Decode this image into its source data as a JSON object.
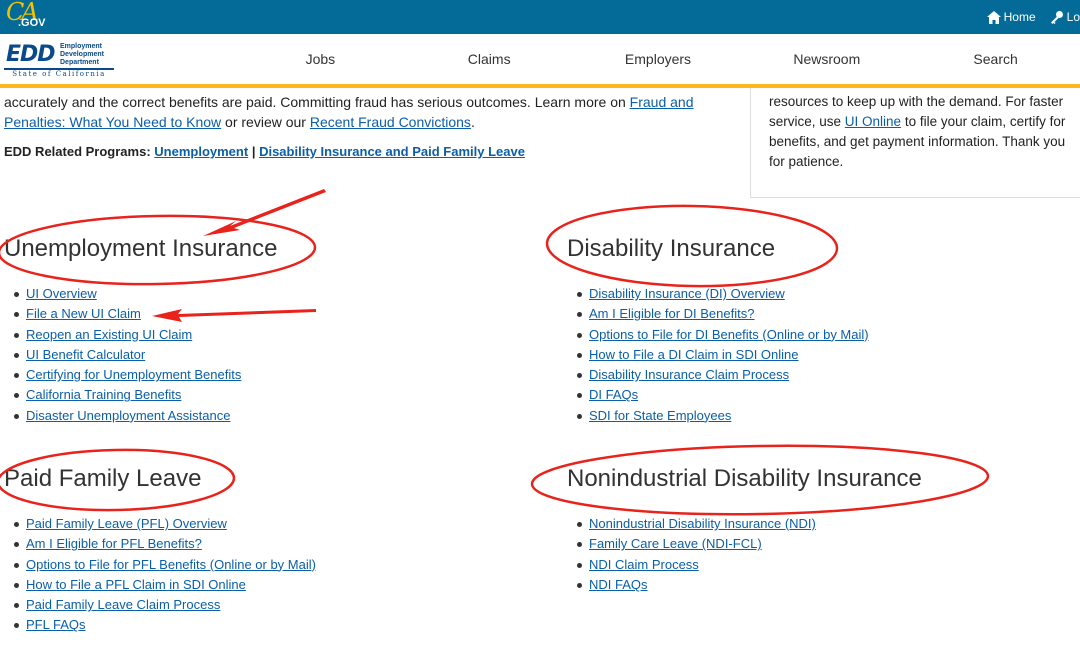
{
  "topbar": {
    "logo_letters": "CA",
    "logo_suffix": ".GOV",
    "home_label": "Home",
    "home_icon": "home-icon",
    "login_label": "Lo",
    "login_icon": "key-icon"
  },
  "header": {
    "logo_text": "EDD",
    "dept_line1": "Employment",
    "dept_line2": "Development",
    "dept_line3": "Department",
    "state_line": "State of California",
    "nav": [
      "Jobs",
      "Claims",
      "Employers",
      "Newsroom",
      "Search"
    ]
  },
  "intro": {
    "text_before": "accurately and the correct benefits are paid. Committing fraud has serious outcomes. Learn more on ",
    "link1": "Fraud and Penalties: What You Need to Know",
    "text_mid": " or review our ",
    "link2": "Recent Fraud Convictions",
    "text_end": "."
  },
  "related": {
    "label": "EDD Related Programs:",
    "link1": "Unemployment",
    "separator": "|",
    "link2": "Disability Insurance and Paid Family Leave"
  },
  "sidebox": {
    "text_before": "resources to keep up with the demand. For faster service, use ",
    "link": "UI Online",
    "text_after": " to file your claim, certify for benefits, and get payment information. Thank you for patience."
  },
  "sections": {
    "ui": {
      "title": "Unemployment Insurance",
      "links": [
        "UI Overview",
        "File a New UI Claim",
        "Reopen an Existing UI Claim",
        "UI Benefit Calculator",
        "Certifying for Unemployment Benefits",
        "California Training Benefits",
        "Disaster Unemployment Assistance"
      ]
    },
    "di": {
      "title": "Disability Insurance",
      "links": [
        "Disability Insurance (DI) Overview",
        "Am I Eligible for DI Benefits?",
        "Options to File for DI Benefits (Online or by Mail)",
        "How to File a DI Claim in SDI Online",
        "Disability Insurance Claim Process",
        "DI FAQs",
        "SDI for State Employees"
      ]
    },
    "pfl": {
      "title": "Paid Family Leave",
      "links": [
        "Paid Family Leave (PFL) Overview",
        "Am I Eligible for PFL Benefits?",
        "Options to File for PFL Benefits (Online or by Mail)",
        "How to File a PFL Claim in SDI Online",
        "Paid Family Leave Claim Process",
        "PFL FAQs"
      ]
    },
    "ndi": {
      "title": "Nonindustrial Disability Insurance",
      "links": [
        "Nonindustrial Disability Insurance (NDI)",
        "Family Care Leave (NDI-FCL)",
        "NDI Claim Process",
        "NDI FAQs"
      ]
    }
  },
  "annotation_color": "#e8231c",
  "brand_blue": "#046b99",
  "accent_gold": "#fdb81e"
}
